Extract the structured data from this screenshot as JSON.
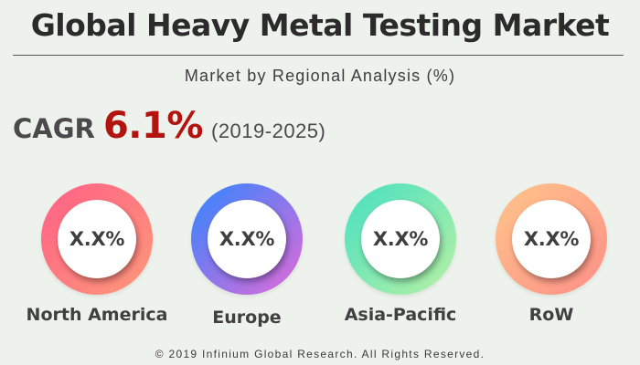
{
  "title": "Global Heavy Metal Testing Market",
  "subtitle": "Market by Regional Analysis (%)",
  "cagr": {
    "label": "CAGR",
    "value": "6.1%",
    "period": "(2019-2025)",
    "value_color": "#b3140f"
  },
  "regions": [
    {
      "name": "North America",
      "value": "X.X%",
      "gradient_colors": [
        "#ff5f86",
        "#ff9a7a"
      ]
    },
    {
      "name": "Europe",
      "value": "X.X%",
      "gradient_colors": [
        "#2f86ff",
        "#e46ad8"
      ]
    },
    {
      "name": "Asia-Pacific",
      "value": "X.X%",
      "gradient_colors": [
        "#46e0c2",
        "#b9f1a4"
      ]
    },
    {
      "name": "RoW",
      "value": "X.X%",
      "gradient_colors": [
        "#ffc58a",
        "#ff8f88"
      ]
    }
  ],
  "footer": "© 2019 Infinium Global Research. All Rights Reserved."
}
